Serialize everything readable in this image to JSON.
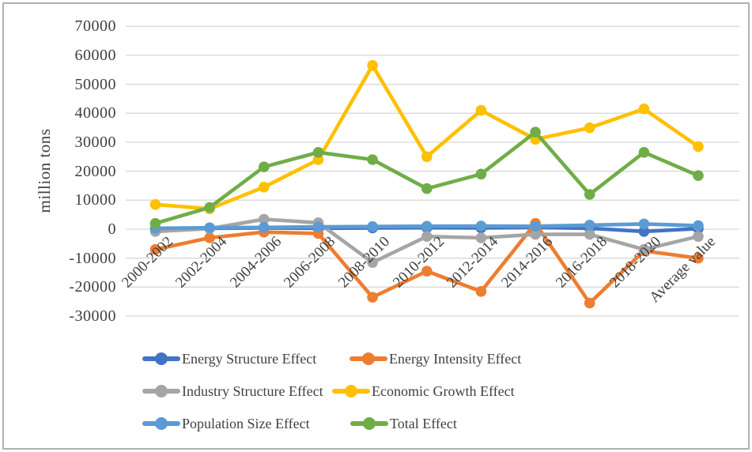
{
  "chart_data": {
    "type": "line",
    "title": "",
    "ylabel": "million tons",
    "xlabel": "",
    "ylim": [
      -30000,
      70000
    ],
    "ytick_step": 10000,
    "grid": true,
    "legend_position": "bottom",
    "ytick_labels": [
      "70000",
      "60000",
      "50000",
      "40000",
      "30000",
      "20000",
      "10000",
      "0",
      "-10000",
      "-20000",
      "-30000"
    ],
    "categories": [
      "2000-2002",
      "2002-2004",
      "2004-2006",
      "2006-2008",
      "2008-2010",
      "2010-2012",
      "2012-2014",
      "2014-2016",
      "2016-2018",
      "2018-2020",
      "Average value"
    ],
    "series": [
      {
        "name": "Energy Structure Effect",
        "color": "#4472C4",
        "values": [
          200,
          300,
          400,
          300,
          400,
          500,
          400,
          600,
          300,
          -800,
          200
        ]
      },
      {
        "name": "Energy Intensity Effect",
        "color": "#ED7D31",
        "values": [
          -7000,
          -3000,
          -1000,
          -1500,
          -23500,
          -14500,
          -21500,
          2000,
          -25500,
          -7500,
          -10000
        ]
      },
      {
        "name": "Industry Structure Effect",
        "color": "#A5A5A5",
        "values": [
          -800,
          200,
          3400,
          2200,
          -11500,
          -2500,
          -3000,
          -1800,
          -1800,
          -7000,
          -2500
        ]
      },
      {
        "name": "Economic Growth Effect",
        "color": "#FFC000",
        "values": [
          8500,
          7000,
          14500,
          24000,
          56500,
          25000,
          41000,
          31000,
          35000,
          41500,
          28500
        ]
      },
      {
        "name": "Population Size Effect",
        "color": "#5B9BD5",
        "values": [
          300,
          500,
          600,
          800,
          900,
          1000,
          1100,
          1000,
          1400,
          1800,
          1200
        ]
      },
      {
        "name": "Total Effect",
        "color": "#70AD47",
        "values": [
          2000,
          7500,
          21500,
          26500,
          24000,
          14000,
          19000,
          33500,
          12000,
          26500,
          18500
        ]
      }
    ],
    "gridline_color": "#D9D9D9",
    "text_color": "#3F3F3F"
  }
}
